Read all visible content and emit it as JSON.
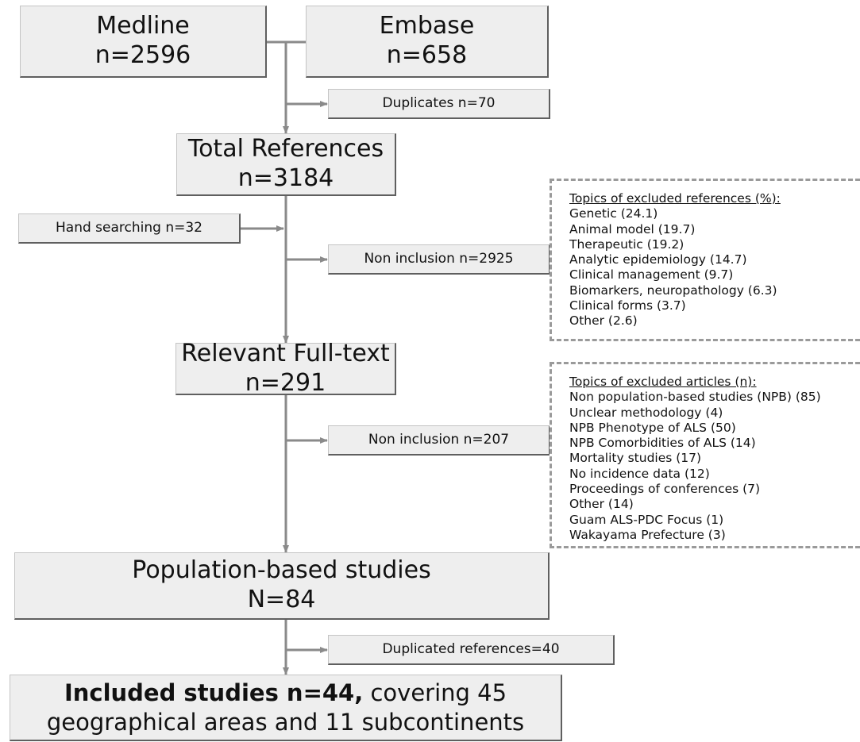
{
  "medline": {
    "label": "Medline",
    "count": "n=2596"
  },
  "embase": {
    "label": "Embase",
    "count": "n=658"
  },
  "duplicates": {
    "label": "Duplicates n=70"
  },
  "total_references": {
    "label": "Total References",
    "count": "n=3184"
  },
  "hand_searching": {
    "label": "Hand searching n=32"
  },
  "non_inclusion_1": {
    "label": "Non inclusion n=2925"
  },
  "relevant_fulltext": {
    "label": "Relevant Full-text",
    "count": "n=291"
  },
  "non_inclusion_2": {
    "label": "Non inclusion n=207"
  },
  "population_studies": {
    "label": "Population-based studies",
    "count": "N=84"
  },
  "duplicated_refs": {
    "label": "Duplicated references=40"
  },
  "included": {
    "bold": "Included studies n=44,",
    "rest": " covering 45",
    "line2": "geographical areas and 11 subcontinents"
  },
  "excluded_references": {
    "title": "Topics of excluded references (%):",
    "items": [
      "Genetic (24.1)",
      "Animal model (19.7)",
      "Therapeutic (19.2)",
      "Analytic epidemiology (14.7)",
      "Clinical management (9.7)",
      "Biomarkers, neuropathology (6.3)",
      "Clinical forms (3.7)",
      "Other (2.6)"
    ]
  },
  "excluded_articles": {
    "title": "Topics of excluded articles (n):",
    "items": [
      "Non population-based studies (NPB) (85)",
      "Unclear methodology (4)",
      "NPB Phenotype of ALS (50)",
      "NPB Comorbidities of ALS (14)",
      "Mortality studies (17)",
      "No incidence data (12)",
      "Proceedings of conferences (7)",
      "Other (14)",
      "Guam ALS-PDC Focus (1)",
      "Wakayama Prefecture (3)"
    ]
  },
  "colors": {
    "box_fill": "#eeeeee",
    "box_shadow": "#5f5f5f",
    "connector": "#8a8a8a",
    "dashed_border": "#9a9a9a"
  }
}
